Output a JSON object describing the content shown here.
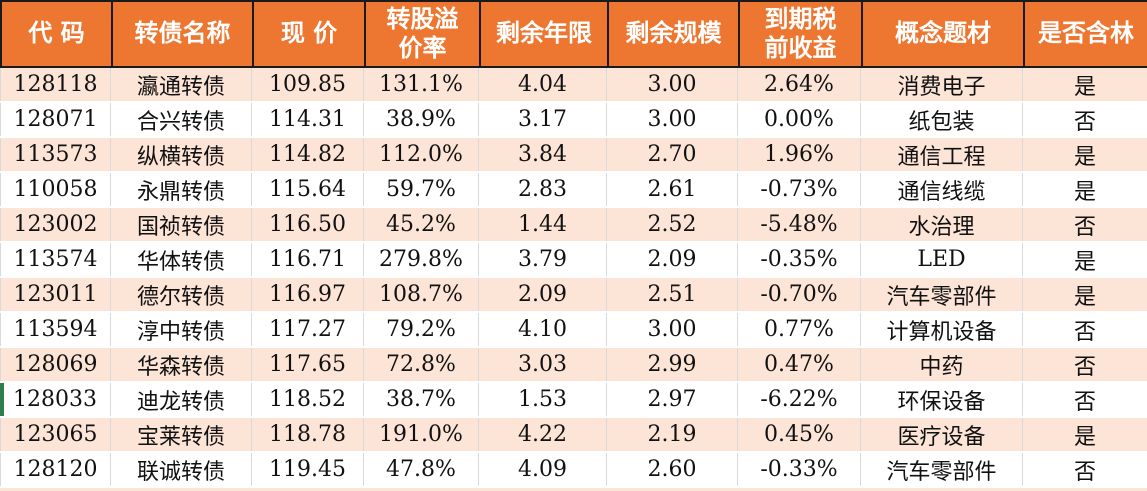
{
  "colors": {
    "header_bg": "#ED7731",
    "header_text": "#FFFFFF",
    "row_alt_bg": "#FCE4D6",
    "row_bg": "#FFFFFF",
    "grid_line": "#D9D9D9",
    "border_dark": "#1A1A1A",
    "marker_green": "#2E7D4F"
  },
  "table": {
    "columns": [
      {
        "key": "code",
        "label": "代 码"
      },
      {
        "key": "name",
        "label": "转债名称"
      },
      {
        "key": "price",
        "label": "现 价"
      },
      {
        "key": "premium",
        "label": "转股溢\n价率"
      },
      {
        "key": "years",
        "label": "剩余年限"
      },
      {
        "key": "size",
        "label": "剩余规模"
      },
      {
        "key": "yield",
        "label": "到期税\n前收益"
      },
      {
        "key": "concept",
        "label": "概念题材"
      },
      {
        "key": "contains",
        "label": "是否含林"
      }
    ],
    "rows": [
      {
        "code": "128118",
        "name": "瀛通转债",
        "price": "109.85",
        "premium": "131.1%",
        "years": "4.04",
        "size": "3.00",
        "yield": "2.64%",
        "concept": "消费电子",
        "contains": "是",
        "marker": false
      },
      {
        "code": "128071",
        "name": "合兴转债",
        "price": "114.31",
        "premium": "38.9%",
        "years": "3.17",
        "size": "3.00",
        "yield": "0.00%",
        "concept": "纸包装",
        "contains": "否",
        "marker": false
      },
      {
        "code": "113573",
        "name": "纵横转债",
        "price": "114.82",
        "premium": "112.0%",
        "years": "3.84",
        "size": "2.70",
        "yield": "1.96%",
        "concept": "通信工程",
        "contains": "是",
        "marker": false
      },
      {
        "code": "110058",
        "name": "永鼎转债",
        "price": "115.64",
        "premium": "59.7%",
        "years": "2.83",
        "size": "2.61",
        "yield": "-0.73%",
        "concept": "通信线缆",
        "contains": "是",
        "marker": false
      },
      {
        "code": "123002",
        "name": "国祯转债",
        "price": "116.50",
        "premium": "45.2%",
        "years": "1.44",
        "size": "2.52",
        "yield": "-5.48%",
        "concept": "水治理",
        "contains": "否",
        "marker": false
      },
      {
        "code": "113574",
        "name": "华体转债",
        "price": "116.71",
        "premium": "279.8%",
        "years": "3.79",
        "size": "2.09",
        "yield": "-0.35%",
        "concept": "LED",
        "contains": "是",
        "marker": false
      },
      {
        "code": "123011",
        "name": "德尔转债",
        "price": "116.97",
        "premium": "108.7%",
        "years": "2.09",
        "size": "2.51",
        "yield": "-0.70%",
        "concept": "汽车零部件",
        "contains": "是",
        "marker": false
      },
      {
        "code": "113594",
        "name": "淳中转债",
        "price": "117.27",
        "premium": "79.2%",
        "years": "4.10",
        "size": "3.00",
        "yield": "0.77%",
        "concept": "计算机设备",
        "contains": "否",
        "marker": false
      },
      {
        "code": "128069",
        "name": "华森转债",
        "price": "117.65",
        "premium": "72.8%",
        "years": "3.03",
        "size": "2.99",
        "yield": "0.47%",
        "concept": "中药",
        "contains": "否",
        "marker": false
      },
      {
        "code": "128033",
        "name": "迪龙转债",
        "price": "118.52",
        "premium": "38.7%",
        "years": "1.53",
        "size": "2.97",
        "yield": "-6.22%",
        "concept": "环保设备",
        "contains": "否",
        "marker": true
      },
      {
        "code": "123065",
        "name": "宝莱转债",
        "price": "118.78",
        "premium": "191.0%",
        "years": "4.22",
        "size": "2.19",
        "yield": "0.45%",
        "concept": "医疗设备",
        "contains": "是",
        "marker": false
      },
      {
        "code": "128120",
        "name": "联诚转债",
        "price": "119.45",
        "premium": "47.8%",
        "years": "4.09",
        "size": "2.60",
        "yield": "-0.33%",
        "concept": "汽车零部件",
        "contains": "否",
        "marker": false
      }
    ]
  }
}
